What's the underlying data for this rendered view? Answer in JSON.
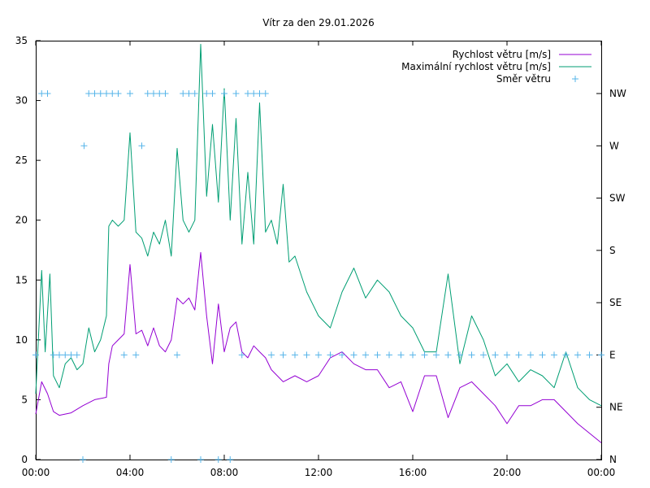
{
  "chart_data": {
    "type": "line",
    "title": "Vítr za den 29.01.2026",
    "x_ticks": [
      "00:00",
      "04:00",
      "08:00",
      "12:00",
      "16:00",
      "20:00",
      "00:00"
    ],
    "x_range_hours": [
      0,
      24
    ],
    "y_left_range": [
      0,
      35
    ],
    "y_left_ticks": [
      "0",
      "5",
      "10",
      "15",
      "20",
      "25",
      "30",
      "35"
    ],
    "y_right_ticks": [
      "N",
      "NE",
      "E",
      "SE",
      "S",
      "SW",
      "W",
      "NW"
    ],
    "grid": false,
    "legend_position": "top-right",
    "series": [
      {
        "name": "Rychlost větru [m/s]",
        "color": "#9400d3",
        "x": [
          0,
          0.25,
          0.5,
          0.75,
          1,
          1.5,
          2,
          2.5,
          3,
          3.1,
          3.25,
          3.5,
          3.75,
          4,
          4.25,
          4.5,
          4.75,
          5,
          5.25,
          5.5,
          5.75,
          6,
          6.25,
          6.5,
          6.75,
          7,
          7.25,
          7.5,
          7.75,
          8,
          8.25,
          8.5,
          8.75,
          9,
          9.25,
          9.5,
          9.75,
          10,
          10.5,
          11,
          11.5,
          12,
          12.5,
          13,
          13.5,
          14,
          14.5,
          15,
          15.5,
          16,
          16.5,
          17,
          17.5,
          18,
          18.5,
          19,
          19.5,
          20,
          20.5,
          21,
          21.5,
          22,
          22.5,
          23,
          23.5,
          24
        ],
        "values": [
          3.8,
          6.5,
          5.5,
          4,
          3.7,
          3.9,
          4.5,
          5,
          5.2,
          8,
          9.5,
          10,
          10.5,
          16.3,
          10.5,
          10.8,
          9.5,
          11,
          9.5,
          9,
          10,
          13.5,
          13,
          13.5,
          12.5,
          17.3,
          12,
          8,
          13,
          9,
          11,
          11.5,
          9,
          8.5,
          9.5,
          9,
          8.5,
          7.5,
          6.5,
          7,
          6.5,
          7,
          8.5,
          9,
          8,
          7.5,
          7.5,
          6,
          6.5,
          4,
          7,
          7,
          3.5,
          6,
          6.5,
          5.5,
          4.5,
          3,
          4.5,
          4.5,
          5,
          5,
          4,
          3,
          2.2,
          1.4
        ]
      },
      {
        "name": "Maximální rychlost větru [m/s]",
        "color": "#009e73",
        "x": [
          0,
          0.25,
          0.4,
          0.6,
          0.75,
          1,
          1.25,
          1.5,
          1.75,
          2,
          2.25,
          2.5,
          2.75,
          3,
          3.1,
          3.25,
          3.5,
          3.75,
          4,
          4.25,
          4.5,
          4.75,
          5,
          5.25,
          5.5,
          5.75,
          6,
          6.25,
          6.5,
          6.75,
          7,
          7.25,
          7.5,
          7.75,
          8,
          8.25,
          8.5,
          8.75,
          9,
          9.25,
          9.5,
          9.75,
          10,
          10.25,
          10.5,
          10.75,
          11,
          11.5,
          12,
          12.5,
          13,
          13.5,
          14,
          14.5,
          15,
          15.5,
          16,
          16.5,
          17,
          17.5,
          18,
          18.5,
          19,
          19.5,
          20,
          20.5,
          21,
          21.5,
          22,
          22.5,
          23,
          23.5,
          24
        ],
        "values": [
          5.5,
          15.8,
          9,
          15.5,
          7,
          6,
          8,
          8.5,
          7.5,
          8,
          11,
          9,
          10,
          12,
          19.5,
          20,
          19.5,
          20,
          27.3,
          19,
          18.5,
          17,
          19,
          18,
          20,
          17,
          26,
          20,
          19,
          20,
          34.7,
          22,
          28,
          21.5,
          31,
          20,
          28.5,
          18,
          24,
          18,
          29.8,
          19,
          20,
          18,
          23,
          16.5,
          17,
          14,
          12,
          11,
          14,
          16,
          13.5,
          15,
          14,
          12,
          11,
          9,
          9,
          15.5,
          8,
          12,
          10,
          7,
          8,
          6.5,
          7.5,
          7,
          6,
          9,
          6,
          5,
          4.5
        ]
      },
      {
        "name": "Směr větru",
        "color": "#56b4e9",
        "marker": "+",
        "axis": "right",
        "x": [
          0,
          0.25,
          0.5,
          0.75,
          1,
          1.25,
          1.5,
          1.75,
          2,
          2.05,
          2.25,
          2.5,
          2.75,
          3,
          3.25,
          3.5,
          3.75,
          4,
          4.25,
          4.5,
          4.75,
          5,
          5.25,
          5.5,
          5.75,
          6,
          6.25,
          6.5,
          6.75,
          7,
          7.25,
          7.5,
          7.75,
          8,
          8.25,
          8.5,
          8.75,
          9,
          9.25,
          9.5,
          9.75,
          10,
          10.5,
          11,
          11.5,
          12,
          12.5,
          13,
          13.5,
          14,
          14.5,
          15,
          15.5,
          16,
          16.5,
          17,
          17.5,
          18,
          18.5,
          19,
          19.5,
          20,
          20.5,
          21,
          21.5,
          22,
          22.5,
          23,
          23.5,
          24
        ],
        "values": [
          "E",
          "NW",
          "NW",
          "E",
          "E",
          "E",
          "E",
          "E",
          "N",
          "W",
          "NW",
          "NW",
          "NW",
          "NW",
          "NW",
          "NW",
          "E",
          "NW",
          "E",
          "W",
          "NW",
          "NW",
          "NW",
          "NW",
          "N",
          "E",
          "NW",
          "NW",
          "NW",
          "N",
          "NW",
          "NW",
          "N",
          "NW",
          "N",
          "NW",
          "E",
          "NW",
          "NW",
          "NW",
          "NW",
          "E",
          "E",
          "E",
          "E",
          "E",
          "E",
          "E",
          "E",
          "E",
          "E",
          "E",
          "E",
          "E",
          "E",
          "E",
          "E",
          "E",
          "E",
          "E",
          "E",
          "E",
          "E",
          "E",
          "E",
          "E",
          "E",
          "E",
          "E",
          "E"
        ]
      }
    ]
  }
}
